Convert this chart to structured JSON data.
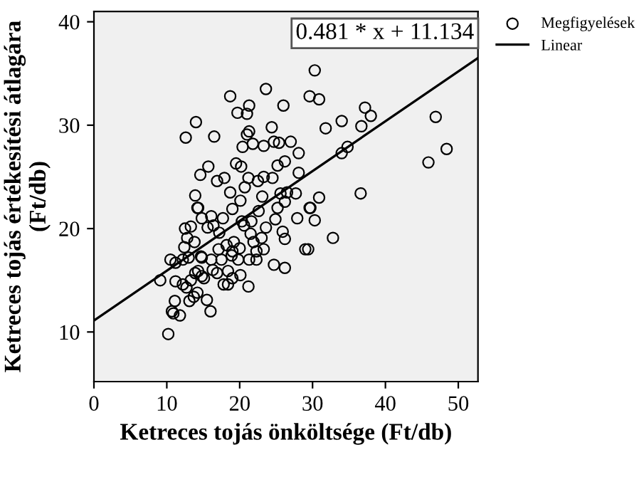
{
  "chart_data": {
    "type": "scatter",
    "xlabel": "Ketreces tojás önköltsége (Ft/db)",
    "ylabel": "Ketreces tojás értékesítési átlagára\n(Ft/db)",
    "xlim": [
      0,
      52.7
    ],
    "ylim": [
      5.2,
      41
    ],
    "xticks": [
      0,
      10,
      20,
      30,
      40,
      50
    ],
    "yticks": [
      10,
      20,
      30,
      40
    ],
    "grid": false,
    "legend": "top right",
    "annotations": [
      "0.481 * x + 11.134"
    ],
    "series": [
      {
        "name": "Megfigyelések",
        "marker": "circle",
        "color": "#000000",
        "x": [
          12.6,
          14.0,
          16.5,
          18.7,
          19.7,
          21.3,
          21.0,
          23.6,
          26.0,
          29.6,
          30.9,
          30.3,
          34.0,
          31.8,
          37.2,
          38.0,
          36.7,
          46.9,
          48.4,
          45.9,
          34.0,
          34.8,
          36.6,
          24.4,
          21.3,
          21.0,
          20.4,
          21.8,
          23.3,
          24.7,
          25.4,
          27.0,
          28.1,
          15.7,
          14.6,
          16.9,
          17.9,
          19.5,
          20.2,
          25.2,
          26.2,
          28.1,
          21.2,
          22.5,
          23.3,
          24.5,
          18.7,
          20.7,
          13.9,
          14.2,
          23.1,
          25.6,
          26.5,
          27.7,
          20.1,
          30.9,
          29.6,
          26.2,
          10.2,
          9.1,
          10.7,
          11.1,
          11.8,
          10.9,
          11.2,
          12.2,
          12.7,
          13.1,
          13.7,
          14.2,
          15.5,
          16.0,
          14.8,
          13.9,
          16.3,
          17.8,
          18.4,
          19.0,
          20.1,
          21.2,
          10.5,
          11.2,
          12.2,
          13.0,
          14.7,
          16.1,
          17.5,
          18.9,
          19.8,
          17.1,
          19.0,
          20.0,
          21.3,
          22.3,
          22.3,
          23.3,
          24.7,
          26.2,
          29.0,
          29.4,
          32.8,
          30.3,
          29.7,
          27.9,
          26.2,
          25.9,
          24.9,
          25.2,
          23.6,
          23.0,
          21.9,
          21.5,
          20.6,
          19.2,
          18.2,
          17.2,
          16.4,
          15.6,
          14.8,
          13.3,
          12.5,
          12.8,
          12.4,
          13.8,
          14.8,
          14.3,
          16.1,
          17.7,
          19.0,
          20.3,
          21.6,
          22.6,
          14.3,
          15.1,
          13.3,
          18.4,
          16.9
        ],
        "values": [
          28.8,
          30.3,
          28.9,
          32.8,
          31.2,
          31.9,
          31.1,
          33.5,
          31.9,
          32.8,
          32.5,
          35.3,
          30.4,
          29.7,
          31.7,
          30.9,
          29.9,
          30.8,
          27.7,
          26.4,
          27.3,
          27.9,
          23.4,
          29.8,
          29.4,
          29.1,
          27.9,
          28.2,
          28.0,
          28.4,
          28.3,
          28.4,
          27.3,
          26.0,
          25.2,
          24.6,
          24.9,
          26.3,
          26.0,
          26.1,
          26.5,
          25.4,
          24.9,
          24.6,
          25.0,
          24.9,
          23.5,
          24.0,
          23.2,
          22.0,
          23.1,
          23.4,
          23.5,
          23.4,
          22.7,
          23.0,
          22.0,
          22.6,
          9.8,
          15.0,
          12.0,
          13.0,
          11.6,
          11.8,
          14.9,
          14.6,
          14.3,
          13.0,
          13.4,
          13.8,
          13.1,
          12.0,
          15.4,
          15.7,
          16.0,
          14.6,
          14.6,
          15.2,
          15.5,
          14.4,
          17.0,
          16.7,
          17.0,
          17.2,
          17.3,
          17.0,
          17.0,
          17.4,
          17.0,
          18.0,
          17.8,
          18.1,
          17.0,
          17.0,
          17.8,
          18.0,
          16.5,
          16.2,
          18.0,
          18.0,
          19.1,
          20.8,
          22.0,
          21.0,
          19.0,
          19.7,
          20.9,
          22.0,
          20.1,
          19.1,
          18.7,
          19.5,
          20.3,
          18.7,
          18.4,
          19.6,
          20.3,
          20.1,
          21.0,
          20.2,
          20.0,
          19.1,
          18.2,
          18.7,
          17.2,
          22.0,
          21.2,
          21.0,
          21.9,
          20.7,
          20.7,
          21.7,
          15.9,
          15.2,
          15.0,
          15.9,
          15.7
        ]
      },
      {
        "name": "Linear",
        "type": "line",
        "marker": "none",
        "color": "#000000",
        "x": [
          0,
          52.7
        ],
        "values": [
          11.1,
          36.5
        ]
      }
    ]
  }
}
